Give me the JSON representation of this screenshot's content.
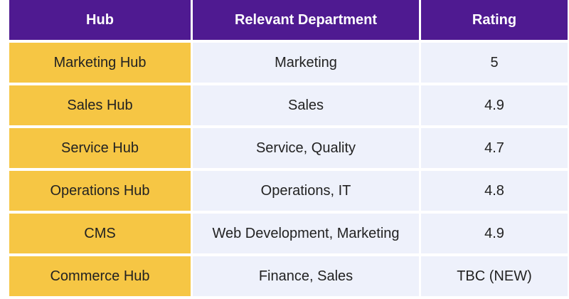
{
  "table": {
    "headers": [
      "Hub",
      "Relevant Department",
      "Rating"
    ],
    "rows": [
      {
        "hub": "Marketing Hub",
        "department": "Marketing",
        "rating": "5"
      },
      {
        "hub": "Sales Hub",
        "department": "Sales",
        "rating": "4.9"
      },
      {
        "hub": "Service Hub",
        "department": "Service, Quality",
        "rating": "4.7"
      },
      {
        "hub": "Operations Hub",
        "department": "Operations, IT",
        "rating": "4.8"
      },
      {
        "hub": "CMS",
        "department": "Web Development, Marketing",
        "rating": "4.9"
      },
      {
        "hub": "Commerce Hub",
        "department": "Finance, Sales",
        "rating": "TBC (NEW)"
      }
    ]
  },
  "colors": {
    "header_bg": "#4f1a91",
    "hub_column_bg": "#f6c644",
    "body_bg": "#eef1fb"
  }
}
